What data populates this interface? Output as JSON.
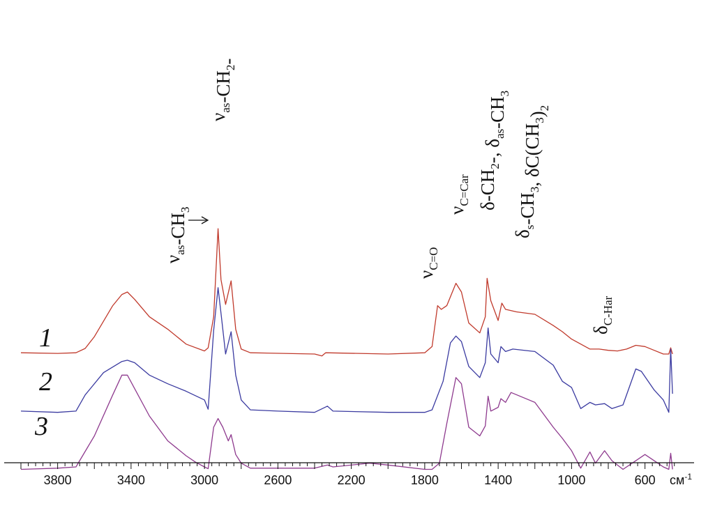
{
  "chart_data": {
    "type": "line",
    "title": "",
    "xlabel": "",
    "ylabel": "",
    "x_unit": "см-1",
    "x_reversed": true,
    "xlim": [
      4000,
      420
    ],
    "x_ticks": [
      3800,
      3400,
      3000,
      2600,
      2200,
      1800,
      1400,
      1000,
      600
    ],
    "x_tick_labels": [
      "3800",
      "3400",
      "3000",
      "2600",
      "2200",
      "1800",
      "1400",
      "1000",
      "600"
    ],
    "grid": false,
    "series": [
      {
        "name": "1",
        "color": "#c0392b",
        "baseline": 0.0,
        "points": [
          [
            4000,
            0.02
          ],
          [
            3800,
            0.01
          ],
          [
            3700,
            0.02
          ],
          [
            3650,
            0.09
          ],
          [
            3600,
            0.28
          ],
          [
            3500,
            0.78
          ],
          [
            3450,
            0.96
          ],
          [
            3420,
            1.0
          ],
          [
            3380,
            0.88
          ],
          [
            3300,
            0.6
          ],
          [
            3200,
            0.4
          ],
          [
            3100,
            0.16
          ],
          [
            3000,
            0.05
          ],
          [
            2980,
            0.1
          ],
          [
            2950,
            0.6
          ],
          [
            2926,
            2.02
          ],
          [
            2910,
            1.2
          ],
          [
            2885,
            0.8
          ],
          [
            2855,
            1.18
          ],
          [
            2830,
            0.4
          ],
          [
            2800,
            0.08
          ],
          [
            2750,
            0.02
          ],
          [
            2400,
            0.0
          ],
          [
            2360,
            -0.03
          ],
          [
            2340,
            0.02
          ],
          [
            2000,
            0.0
          ],
          [
            1800,
            0.02
          ],
          [
            1760,
            0.12
          ],
          [
            1730,
            0.78
          ],
          [
            1710,
            0.72
          ],
          [
            1680,
            0.78
          ],
          [
            1630,
            1.14
          ],
          [
            1600,
            1.0
          ],
          [
            1560,
            0.5
          ],
          [
            1500,
            0.34
          ],
          [
            1470,
            0.6
          ],
          [
            1460,
            1.22
          ],
          [
            1440,
            0.86
          ],
          [
            1400,
            0.54
          ],
          [
            1380,
            0.82
          ],
          [
            1360,
            0.72
          ],
          [
            1300,
            0.68
          ],
          [
            1200,
            0.64
          ],
          [
            1100,
            0.46
          ],
          [
            1050,
            0.36
          ],
          [
            1000,
            0.24
          ],
          [
            900,
            0.08
          ],
          [
            850,
            0.08
          ],
          [
            800,
            0.06
          ],
          [
            750,
            0.05
          ],
          [
            700,
            0.08
          ],
          [
            650,
            0.14
          ],
          [
            600,
            0.12
          ],
          [
            550,
            0.06
          ],
          [
            500,
            0.0
          ],
          [
            470,
            0.0
          ],
          [
            460,
            0.1
          ],
          [
            450,
            0.0
          ]
        ]
      },
      {
        "name": "2",
        "color": "#3a3aa0",
        "baseline": -0.94,
        "points": [
          [
            4000,
            0.02
          ],
          [
            3800,
            0.0
          ],
          [
            3700,
            0.02
          ],
          [
            3650,
            0.28
          ],
          [
            3550,
            0.64
          ],
          [
            3450,
            0.82
          ],
          [
            3420,
            0.84
          ],
          [
            3380,
            0.8
          ],
          [
            3300,
            0.6
          ],
          [
            3200,
            0.46
          ],
          [
            3100,
            0.34
          ],
          [
            3000,
            0.2
          ],
          [
            2980,
            0.05
          ],
          [
            2950,
            1.32
          ],
          [
            2926,
            2.01
          ],
          [
            2910,
            1.6
          ],
          [
            2885,
            0.94
          ],
          [
            2855,
            1.3
          ],
          [
            2830,
            0.6
          ],
          [
            2800,
            0.2
          ],
          [
            2750,
            0.04
          ],
          [
            2600,
            0.02
          ],
          [
            2400,
            0.0
          ],
          [
            2330,
            0.1
          ],
          [
            2300,
            0.02
          ],
          [
            2000,
            0.0
          ],
          [
            1800,
            0.0
          ],
          [
            1760,
            0.04
          ],
          [
            1700,
            0.5
          ],
          [
            1660,
            1.12
          ],
          [
            1630,
            1.23
          ],
          [
            1600,
            1.14
          ],
          [
            1560,
            0.74
          ],
          [
            1500,
            0.56
          ],
          [
            1470,
            0.8
          ],
          [
            1455,
            1.36
          ],
          [
            1440,
            0.94
          ],
          [
            1400,
            0.8
          ],
          [
            1385,
            1.06
          ],
          [
            1360,
            0.98
          ],
          [
            1320,
            1.02
          ],
          [
            1200,
            0.98
          ],
          [
            1100,
            0.76
          ],
          [
            1050,
            0.5
          ],
          [
            1000,
            0.4
          ],
          [
            950,
            0.06
          ],
          [
            900,
            0.16
          ],
          [
            870,
            0.12
          ],
          [
            820,
            0.14
          ],
          [
            780,
            0.06
          ],
          [
            720,
            0.12
          ],
          [
            650,
            0.7
          ],
          [
            620,
            0.66
          ],
          [
            550,
            0.36
          ],
          [
            500,
            0.2
          ],
          [
            470,
            0.0
          ],
          [
            460,
            1.02
          ],
          [
            450,
            0.3
          ]
        ]
      },
      {
        "name": "3",
        "color": "#8e3a8e",
        "baseline": -1.86,
        "points": [
          [
            4000,
            0.0
          ],
          [
            3800,
            0.02
          ],
          [
            3700,
            0.04
          ],
          [
            3600,
            0.54
          ],
          [
            3500,
            1.2
          ],
          [
            3450,
            1.52
          ],
          [
            3420,
            1.52
          ],
          [
            3380,
            1.3
          ],
          [
            3300,
            0.86
          ],
          [
            3200,
            0.46
          ],
          [
            3100,
            0.22
          ],
          [
            3050,
            0.12
          ],
          [
            3000,
            0.04
          ],
          [
            2980,
            0.01
          ],
          [
            2950,
            0.68
          ],
          [
            2926,
            0.82
          ],
          [
            2900,
            0.68
          ],
          [
            2870,
            0.46
          ],
          [
            2855,
            0.56
          ],
          [
            2830,
            0.24
          ],
          [
            2800,
            0.1
          ],
          [
            2750,
            0.02
          ],
          [
            2400,
            0.02
          ],
          [
            2330,
            0.07
          ],
          [
            2300,
            0.04
          ],
          [
            2100,
            0.1
          ],
          [
            2000,
            0.07
          ],
          [
            1800,
            0.0
          ],
          [
            1760,
            0.0
          ],
          [
            1720,
            0.1
          ],
          [
            1680,
            0.74
          ],
          [
            1630,
            1.48
          ],
          [
            1600,
            1.38
          ],
          [
            1560,
            0.68
          ],
          [
            1500,
            0.54
          ],
          [
            1470,
            0.7
          ],
          [
            1455,
            1.18
          ],
          [
            1440,
            0.94
          ],
          [
            1400,
            1.0
          ],
          [
            1385,
            1.14
          ],
          [
            1360,
            1.08
          ],
          [
            1330,
            1.24
          ],
          [
            1200,
            1.08
          ],
          [
            1100,
            0.68
          ],
          [
            1050,
            0.5
          ],
          [
            1000,
            0.3
          ],
          [
            950,
            0.02
          ],
          [
            900,
            0.28
          ],
          [
            870,
            0.1
          ],
          [
            820,
            0.3
          ],
          [
            780,
            0.14
          ],
          [
            720,
            0.0
          ],
          [
            650,
            0.14
          ],
          [
            600,
            0.24
          ],
          [
            550,
            0.14
          ],
          [
            500,
            0.04
          ],
          [
            470,
            0.0
          ],
          [
            460,
            0.26
          ],
          [
            450,
            0.0
          ]
        ]
      }
    ]
  },
  "curve_labels": [
    "1",
    "2",
    "3"
  ],
  "annotations": [
    {
      "id": "vas-ch3",
      "parts": [
        [
          "ν",
          ""
        ],
        [
          "as",
          "sub"
        ],
        [
          "-CH",
          ""
        ],
        [
          "3",
          "sub"
        ]
      ]
    },
    {
      "id": "vas-ch2",
      "parts": [
        [
          "ν",
          ""
        ],
        [
          "as",
          "sub"
        ],
        [
          "-CH",
          ""
        ],
        [
          "2",
          "sub"
        ],
        [
          "-",
          ""
        ]
      ]
    },
    {
      "id": "vco",
      "parts": [
        [
          "ν",
          ""
        ],
        [
          "C=O",
          "sub"
        ]
      ]
    },
    {
      "id": "vcc",
      "parts": [
        [
          "ν",
          ""
        ],
        [
          "C=Car",
          "sub"
        ]
      ]
    },
    {
      "id": "dch2",
      "parts": [
        [
          "δ",
          ""
        ],
        [
          "-CH",
          ""
        ],
        [
          "2",
          "sub"
        ],
        [
          "-, ",
          ""
        ],
        [
          "δ",
          ""
        ],
        [
          "as",
          "sub"
        ],
        [
          "-CH",
          ""
        ],
        [
          "3",
          "sub"
        ]
      ]
    },
    {
      "id": "dsch3",
      "parts": [
        [
          "δ",
          ""
        ],
        [
          "s",
          "sub"
        ],
        [
          "-CH",
          ""
        ],
        [
          "3",
          "sub"
        ],
        [
          ", ",
          ""
        ],
        [
          "δ",
          ""
        ],
        [
          "C(CH",
          ""
        ],
        [
          "3",
          "sub"
        ],
        [
          ")",
          ""
        ],
        [
          "2",
          "sub"
        ]
      ]
    },
    {
      "id": "dchar",
      "parts": [
        [
          "δ",
          ""
        ],
        [
          "C-Har",
          "sub"
        ]
      ]
    }
  ],
  "axis_unit_label": "см",
  "axis_unit_sup": "-1"
}
